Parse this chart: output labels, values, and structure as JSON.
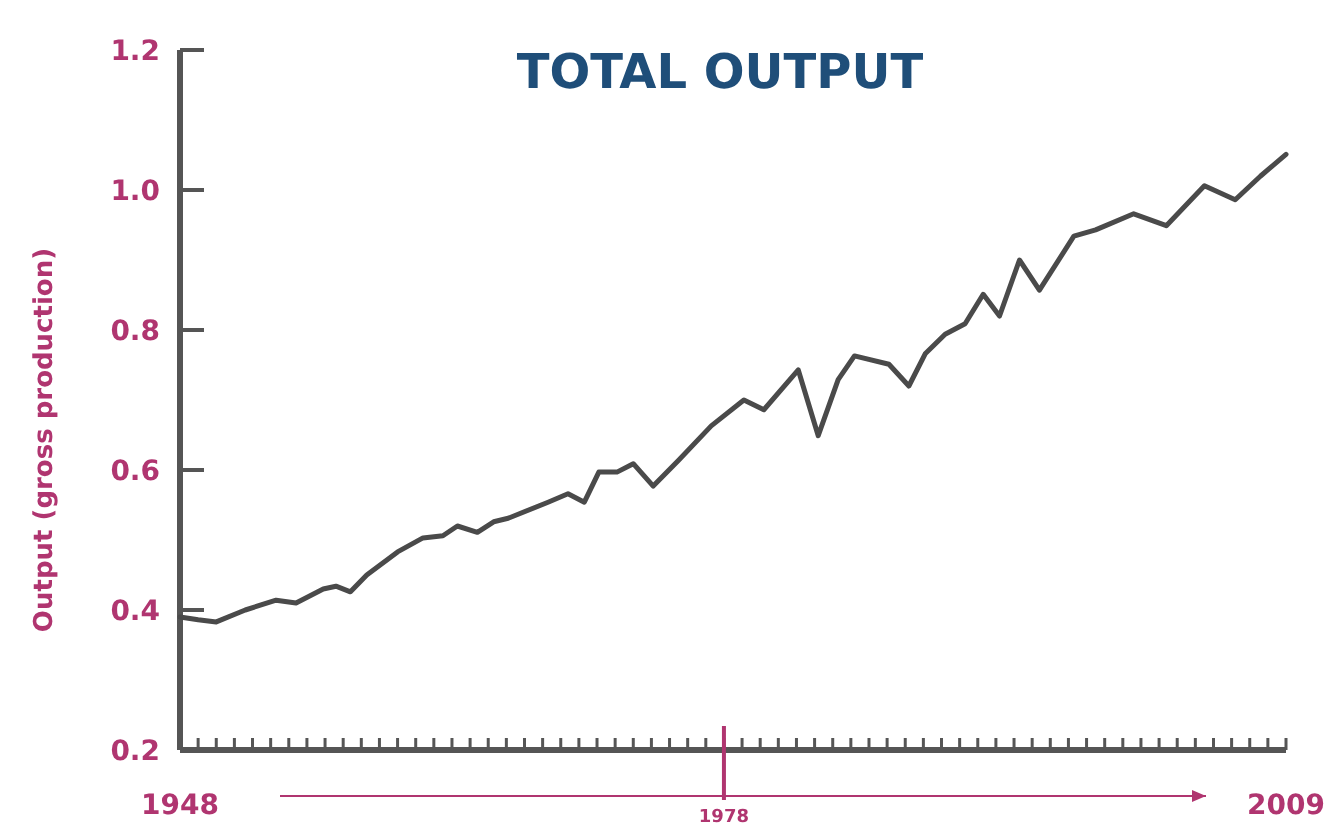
{
  "chart_data": {
    "type": "line",
    "title": "TOTAL OUTPUT",
    "ylabel": "Output (gross production)",
    "xlim": [
      1948,
      2009
    ],
    "ylim": [
      0.2,
      1.2
    ],
    "yticks": [
      0.2,
      0.4,
      0.6,
      0.8,
      {
        "value": 1.0,
        "label": "1.0"
      },
      1.2
    ],
    "xticks": [
      {
        "value": 1948,
        "label": "1948"
      },
      {
        "value": 1949,
        "label": null
      },
      {
        "value": 1950,
        "label": null
      },
      {
        "value": 1951,
        "label": null
      },
      {
        "value": 1952,
        "label": null
      },
      {
        "value": 1953,
        "label": null
      },
      {
        "value": 1954,
        "label": null
      },
      {
        "value": 1955,
        "label": null
      },
      {
        "value": 1956,
        "label": null
      },
      {
        "value": 1957,
        "label": null
      },
      {
        "value": 1958,
        "label": null
      },
      {
        "value": 1959,
        "label": null
      },
      {
        "value": 1960,
        "label": null
      },
      {
        "value": 1961,
        "label": null
      },
      {
        "value": 1962,
        "label": null
      },
      {
        "value": 1963,
        "label": null
      },
      {
        "value": 1964,
        "label": null
      },
      {
        "value": 1965,
        "label": null
      },
      {
        "value": 1966,
        "label": null
      },
      {
        "value": 1967,
        "label": null
      },
      {
        "value": 1968,
        "label": null
      },
      {
        "value": 1969,
        "label": null
      },
      {
        "value": 1970,
        "label": null
      },
      {
        "value": 1971,
        "label": null
      },
      {
        "value": 1972,
        "label": null
      },
      {
        "value": 1973,
        "label": null
      },
      {
        "value": 1974,
        "label": null
      },
      {
        "value": 1975,
        "label": null
      },
      {
        "value": 1976,
        "label": null
      },
      {
        "value": 1977,
        "label": null
      },
      {
        "value": 1978,
        "label": null
      },
      {
        "value": 1979,
        "label": null
      },
      {
        "value": 1980,
        "label": null
      },
      {
        "value": 1981,
        "label": null
      },
      {
        "value": 1982,
        "label": null
      },
      {
        "value": 1983,
        "label": null
      },
      {
        "value": 1984,
        "label": null
      },
      {
        "value": 1985,
        "label": null
      },
      {
        "value": 1986,
        "label": null
      },
      {
        "value": 1987,
        "label": null
      },
      {
        "value": 1988,
        "label": null
      },
      {
        "value": 1989,
        "label": null
      },
      {
        "value": 1990,
        "label": null
      },
      {
        "value": 1991,
        "label": null
      },
      {
        "value": 1992,
        "label": null
      },
      {
        "value": 1993,
        "label": null
      },
      {
        "value": 1994,
        "label": null
      },
      {
        "value": 1995,
        "label": null
      },
      {
        "value": 1996,
        "label": null
      },
      {
        "value": 1997,
        "label": null
      },
      {
        "value": 1998,
        "label": null
      },
      {
        "value": 1999,
        "label": null
      },
      {
        "value": 2000,
        "label": null
      },
      {
        "value": 2001,
        "label": null
      },
      {
        "value": 2002,
        "label": null
      },
      {
        "value": 2003,
        "label": null
      },
      {
        "value": 2004,
        "label": null
      },
      {
        "value": 2005,
        "label": null
      },
      {
        "value": 2006,
        "label": null
      },
      {
        "value": 2007,
        "label": null
      },
      {
        "value": 2008,
        "label": null
      },
      {
        "value": 2009,
        "label": "2009"
      }
    ],
    "ref_lines": [
      {
        "axis": "x",
        "value": 1978,
        "label": "1978",
        "color": "#b03570"
      }
    ],
    "series": [
      {
        "color": "#4a4a4a",
        "x": [
          1948,
          1949,
          1950,
          1951.6,
          1953.3,
          1954.4,
          1955.9,
          1956.6,
          1957.4,
          1958.3,
          1960,
          1961.4,
          1962.5,
          1963.3,
          1964.4,
          1965.3,
          1966.1,
          1968.3,
          1969.4,
          1970.3,
          1971.1,
          1972.1,
          1973,
          1974.1,
          1975.5,
          1977.3,
          1979.1,
          1980.2,
          1982.1,
          1983.2,
          1984.3,
          1985.2,
          1987.1,
          1988.2,
          1989.1,
          1990.2,
          1991.3,
          1992.3,
          1993.2,
          1994.3,
          1995.4,
          1997.3,
          1998.5,
          2000.6,
          2002.4,
          2004.5,
          2006.2,
          2007.6,
          2009
        ],
        "values": [
          0.39,
          0.386,
          0.383,
          0.4,
          0.414,
          0.41,
          0.43,
          0.434,
          0.426,
          0.45,
          0.483,
          0.503,
          0.506,
          0.52,
          0.511,
          0.526,
          0.531,
          0.554,
          0.566,
          0.554,
          0.597,
          0.597,
          0.609,
          0.577,
          0.614,
          0.663,
          0.7,
          0.686,
          0.743,
          0.649,
          0.729,
          0.763,
          0.751,
          0.72,
          0.766,
          0.794,
          0.809,
          0.851,
          0.82,
          0.9,
          0.857,
          0.934,
          0.943,
          0.966,
          0.949,
          1.006,
          0.986,
          1.02,
          1.051
        ]
      }
    ]
  }
}
